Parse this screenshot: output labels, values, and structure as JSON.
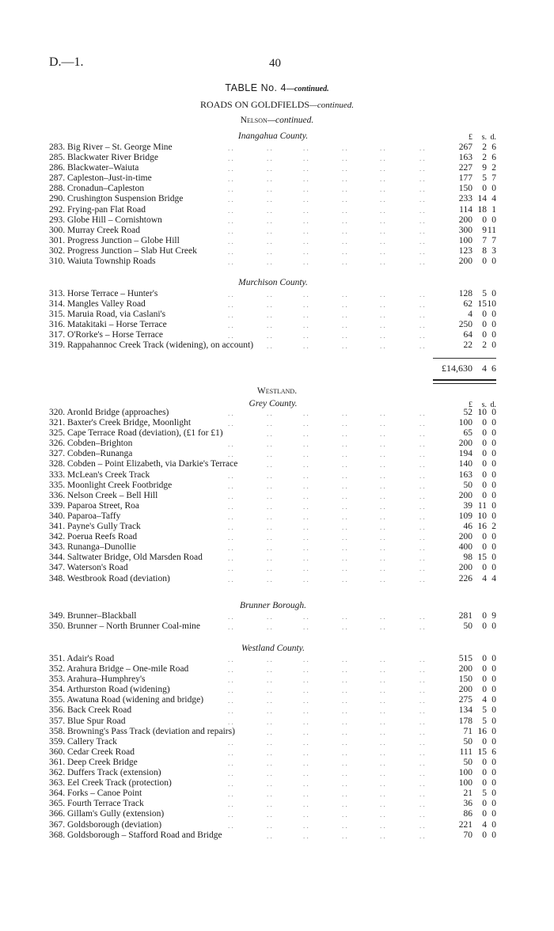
{
  "header": {
    "doc_ref": "D.—1.",
    "page_number": "40"
  },
  "table_title": {
    "main": "TABLE No. 4",
    "suffix": "—continued."
  },
  "subtitle": {
    "main": "ROADS ON GOLDFIELDS",
    "suffix": "—continued."
  },
  "column_headers": {
    "pounds": "£",
    "shillings": "s.",
    "pence": "d."
  },
  "nelson": {
    "heading": "Nelson",
    "suffix": "—continued.",
    "inangahua": {
      "heading": "Inangahua County.",
      "rows": [
        {
          "no": "283.",
          "name": "Big River – St. George Mine",
          "amount": [
            "267",
            "2",
            "6"
          ]
        },
        {
          "no": "285.",
          "name": "Blackwater River Bridge",
          "amount": [
            "163",
            "2",
            "6"
          ]
        },
        {
          "no": "286.",
          "name": "Blackwater–Waiuta",
          "amount": [
            "227",
            "9",
            "2"
          ]
        },
        {
          "no": "287.",
          "name": "Capleston–Just-in-time",
          "amount": [
            "177",
            "5",
            "7"
          ]
        },
        {
          "no": "288.",
          "name": "Cronadun–Capleston",
          "amount": [
            "150",
            "0",
            "0"
          ]
        },
        {
          "no": "290.",
          "name": "Crushington Suspension Bridge",
          "amount": [
            "233",
            "14",
            "4"
          ]
        },
        {
          "no": "292.",
          "name": "Frying-pan Flat Road",
          "amount": [
            "114",
            "18",
            "1"
          ]
        },
        {
          "no": "293.",
          "name": "Globe Hill – Cornishtown",
          "amount": [
            "200",
            "0",
            "0"
          ]
        },
        {
          "no": "300.",
          "name": "Murray Creek Road",
          "amount": [
            "300",
            "9",
            "11"
          ]
        },
        {
          "no": "301.",
          "name": "Progress Junction – Globe Hill",
          "amount": [
            "100",
            "7",
            "7"
          ]
        },
        {
          "no": "302.",
          "name": "Progress Junction – Slab Hut Creek",
          "amount": [
            "123",
            "8",
            "3"
          ]
        },
        {
          "no": "310.",
          "name": "Waiuta Township Roads",
          "amount": [
            "200",
            "0",
            "0"
          ]
        }
      ]
    },
    "murchison": {
      "heading": "Murchison County.",
      "rows": [
        {
          "no": "313.",
          "name": "Horse Terrace – Hunter's",
          "amount": [
            "128",
            "5",
            "0"
          ]
        },
        {
          "no": "314.",
          "name": "Mangles Valley Road",
          "amount": [
            "62",
            "15",
            "10"
          ]
        },
        {
          "no": "315.",
          "name": "Maruia Road, via Caslani's",
          "amount": [
            "4",
            "0",
            "0"
          ]
        },
        {
          "no": "316.",
          "name": "Matakitaki – Horse Terrace",
          "amount": [
            "250",
            "0",
            "0"
          ]
        },
        {
          "no": "317.",
          "name": "O'Rorke's – Horse Terrace",
          "amount": [
            "64",
            "0",
            "0"
          ]
        },
        {
          "no": "319.",
          "name": "Rappahannoc Creek Track (widening), on account)",
          "amount": [
            "22",
            "2",
            "0"
          ]
        }
      ]
    },
    "total": [
      "£14,630",
      "4",
      "6"
    ]
  },
  "westland": {
    "heading": "Westland.",
    "grey": {
      "heading": "Grey County.",
      "rows": [
        {
          "no": "320.",
          "name": "Aronld Bridge (approaches)",
          "amount": [
            "52",
            "10",
            "0"
          ]
        },
        {
          "no": "321.",
          "name": "Baxter's Creek Bridge, Moonlight",
          "amount": [
            "100",
            "0",
            "0"
          ]
        },
        {
          "no": "325.",
          "name": "Cape Terrace Road (deviation), (£1 for £1)",
          "amount": [
            "65",
            "0",
            "0"
          ]
        },
        {
          "no": "326.",
          "name": "Cobden–Brighton",
          "amount": [
            "200",
            "0",
            "0"
          ]
        },
        {
          "no": "327.",
          "name": "Cobden–Runanga",
          "amount": [
            "194",
            "0",
            "0"
          ]
        },
        {
          "no": "328.",
          "name": "Cobden – Point Elizabeth, via Darkie's Terrace",
          "amount": [
            "140",
            "0",
            "0"
          ]
        },
        {
          "no": "333.",
          "name": "McLean's Creek Track",
          "amount": [
            "163",
            "0",
            "0"
          ]
        },
        {
          "no": "335.",
          "name": "Moonlight Creek Footbridge",
          "amount": [
            "50",
            "0",
            "0"
          ]
        },
        {
          "no": "336.",
          "name": "Nelson Creek – Bell Hill",
          "amount": [
            "200",
            "0",
            "0"
          ]
        },
        {
          "no": "339.",
          "name": "Paparoa Street, Roa",
          "amount": [
            "39",
            "11",
            "0"
          ]
        },
        {
          "no": "340.",
          "name": "Paparoa–Taffy",
          "amount": [
            "109",
            "10",
            "0"
          ]
        },
        {
          "no": "341.",
          "name": "Payne's Gully Track",
          "amount": [
            "46",
            "16",
            "2"
          ]
        },
        {
          "no": "342.",
          "name": "Poerua Reefs Road",
          "amount": [
            "200",
            "0",
            "0"
          ]
        },
        {
          "no": "343.",
          "name": "Runanga–Dunollie",
          "amount": [
            "400",
            "0",
            "0"
          ]
        },
        {
          "no": "344.",
          "name": "Saltwater Bridge, Old Marsden Road",
          "amount": [
            "98",
            "15",
            "0"
          ]
        },
        {
          "no": "347.",
          "name": "Waterson's Road",
          "amount": [
            "200",
            "0",
            "0"
          ]
        },
        {
          "no": "348.",
          "name": "Westbrook Road (deviation)",
          "amount": [
            "226",
            "4",
            "4"
          ]
        }
      ]
    },
    "brunner": {
      "heading": "Brunner Borough.",
      "rows": [
        {
          "no": "349.",
          "name": "Brunner–Blackball",
          "amount": [
            "281",
            "0",
            "9"
          ]
        },
        {
          "no": "350.",
          "name": "Brunner – North Brunner Coal-mine",
          "amount": [
            "50",
            "0",
            "0"
          ]
        }
      ]
    },
    "westland_county": {
      "heading": "Westland County.",
      "rows": [
        {
          "no": "351.",
          "name": "Adair's Road",
          "amount": [
            "515",
            "0",
            "0"
          ]
        },
        {
          "no": "352.",
          "name": "Arahura Bridge – One-mile Road",
          "amount": [
            "200",
            "0",
            "0"
          ]
        },
        {
          "no": "353.",
          "name": "Arahura–Humphrey's",
          "amount": [
            "150",
            "0",
            "0"
          ]
        },
        {
          "no": "354.",
          "name": "Arthurston Road (widening)",
          "amount": [
            "200",
            "0",
            "0"
          ]
        },
        {
          "no": "355.",
          "name": "Awatuna Road (widening and bridge)",
          "amount": [
            "275",
            "4",
            "0"
          ]
        },
        {
          "no": "356.",
          "name": "Back Creek Road",
          "amount": [
            "134",
            "5",
            "0"
          ]
        },
        {
          "no": "357.",
          "name": "Blue Spur Road",
          "amount": [
            "178",
            "5",
            "0"
          ]
        },
        {
          "no": "358.",
          "name": "Browning's Pass Track (deviation and repairs)",
          "amount": [
            "71",
            "16",
            "0"
          ]
        },
        {
          "no": "359.",
          "name": "Callery Track",
          "amount": [
            "50",
            "0",
            "0"
          ]
        },
        {
          "no": "360.",
          "name": "Cedar Creek Road",
          "amount": [
            "111",
            "15",
            "6"
          ]
        },
        {
          "no": "361.",
          "name": "Deep Creek Bridge",
          "amount": [
            "50",
            "0",
            "0"
          ]
        },
        {
          "no": "362.",
          "name": "Duffers Track (extension)",
          "amount": [
            "100",
            "0",
            "0"
          ]
        },
        {
          "no": "363.",
          "name": "Eel Creek Track (protection)",
          "amount": [
            "100",
            "0",
            "0"
          ]
        },
        {
          "no": "364.",
          "name": "Forks – Canoe Point",
          "amount": [
            "21",
            "5",
            "0"
          ]
        },
        {
          "no": "365.",
          "name": "Fourth Terrace Track",
          "amount": [
            "36",
            "0",
            "0"
          ]
        },
        {
          "no": "366.",
          "name": "Gillam's Gully (extension)",
          "amount": [
            "86",
            "0",
            "0"
          ]
        },
        {
          "no": "367.",
          "name": "Goldsborough (deviation)",
          "amount": [
            "221",
            "4",
            "0"
          ]
        },
        {
          "no": "368.",
          "name": "Goldsborough – Stafford Road and Bridge",
          "amount": [
            "70",
            "0",
            "0"
          ]
        }
      ]
    }
  }
}
